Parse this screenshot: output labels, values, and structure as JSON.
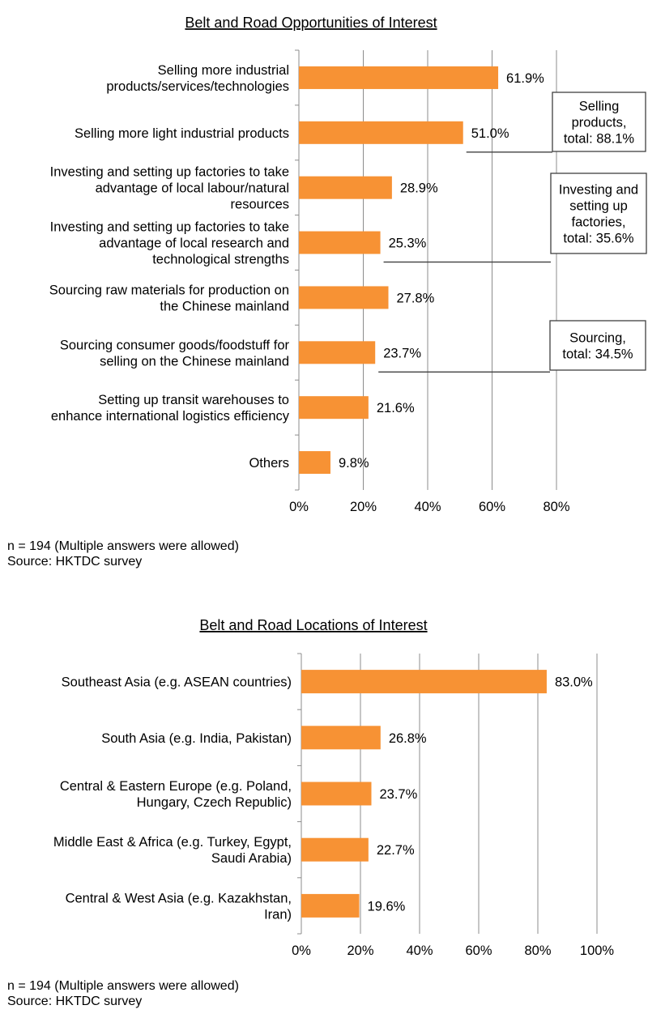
{
  "chart_data": [
    {
      "type": "bar",
      "orientation": "horizontal",
      "title": "Belt and Road Opportunities of Interest",
      "categories": [
        [
          "Selling more industrial",
          "products/services/technologies"
        ],
        [
          "Selling more light industrial products"
        ],
        [
          "Investing and setting up factories to take",
          "advantage of local labour/natural",
          "resources"
        ],
        [
          "Investing and setting up factories to take",
          "advantage of local research and",
          "technological strengths"
        ],
        [
          "Sourcing raw materials for production on",
          "the Chinese mainland"
        ],
        [
          "Sourcing consumer goods/foodstuff for",
          "selling on the Chinese mainland"
        ],
        [
          "Setting up transit warehouses to",
          "enhance international logistics efficiency"
        ],
        [
          "Others"
        ]
      ],
      "values": [
        61.9,
        51.0,
        28.9,
        25.3,
        27.8,
        23.7,
        21.6,
        9.8
      ],
      "value_labels": [
        "61.9%",
        "51.0%",
        "28.9%",
        "25.3%",
        "27.8%",
        "23.7%",
        "21.6%",
        "9.8%"
      ],
      "xlim": [
        0,
        80
      ],
      "x_ticks": [
        "0%",
        "20%",
        "40%",
        "60%",
        "80%"
      ],
      "grid": "vertical",
      "bar_color": "#F79234",
      "annotations": [
        {
          "lines": [
            "Selling",
            "products,",
            "total: 88.1%"
          ],
          "groups": [
            0,
            1
          ]
        },
        {
          "lines": [
            "Investing and",
            "setting up",
            "factories,",
            "total: 35.6%"
          ],
          "groups": [
            2,
            3
          ]
        },
        {
          "lines": [
            "Sourcing,",
            "total: 34.5%"
          ],
          "groups": [
            4,
            5
          ]
        }
      ],
      "notes": [
        "n = 194 (Multiple answers were allowed)",
        "Source: HKTDC survey"
      ]
    },
    {
      "type": "bar",
      "orientation": "horizontal",
      "title": "Belt and Road Locations of Interest",
      "categories": [
        [
          "Southeast Asia (e.g. ASEAN countries)"
        ],
        [
          "South Asia (e.g. India, Pakistan)"
        ],
        [
          "Central & Eastern Europe (e.g. Poland,",
          "Hungary, Czech Republic)"
        ],
        [
          "Middle East & Africa (e.g. Turkey, Egypt,",
          "Saudi Arabia)"
        ],
        [
          "Central & West Asia (e.g. Kazakhstan,",
          "Iran)"
        ]
      ],
      "values": [
        83.0,
        26.8,
        23.7,
        22.7,
        19.6
      ],
      "value_labels": [
        "83.0%",
        "26.8%",
        "23.7%",
        "22.7%",
        "19.6%"
      ],
      "xlim": [
        0,
        100
      ],
      "x_ticks": [
        "0%",
        "20%",
        "40%",
        "60%",
        "80%",
        "100%"
      ],
      "grid": "vertical",
      "bar_color": "#F79234",
      "notes": [
        "n = 194 (Multiple answers were allowed)",
        "Source: HKTDC survey"
      ]
    }
  ]
}
